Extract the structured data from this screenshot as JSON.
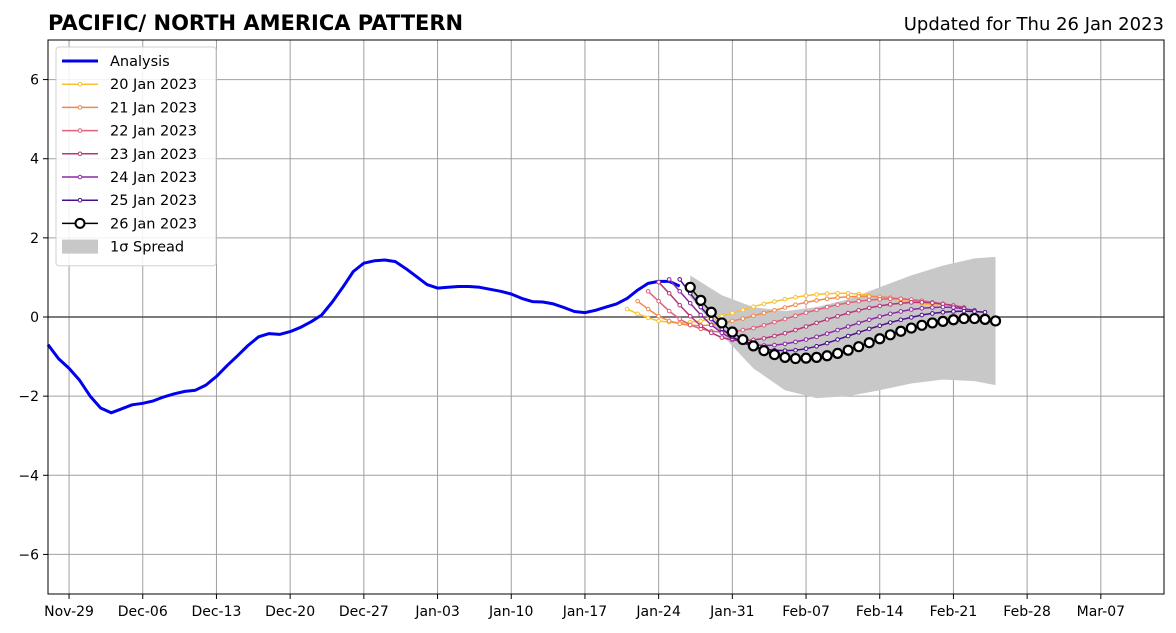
{
  "chart_data": {
    "type": "line",
    "title": "PACIFIC/ NORTH AMERICA PATTERN",
    "updated": "Updated for Thu 26 Jan 2023",
    "xlabel": "",
    "ylabel": "",
    "x_ticks": [
      "Nov-29",
      "Dec-06",
      "Dec-13",
      "Dec-20",
      "Dec-27",
      "Jan-03",
      "Jan-10",
      "Jan-17",
      "Jan-24",
      "Jan-31",
      "Feb-07",
      "Feb-14",
      "Feb-21",
      "Feb-28",
      "Mar-07"
    ],
    "xlim": [
      "2022-11-27",
      "2023-03-13"
    ],
    "y_ticks": [
      6,
      4,
      2,
      0,
      -2,
      -4,
      -6
    ],
    "ylim": [
      -7,
      7
    ],
    "grid": true,
    "legend_position": "top-left",
    "series": [
      {
        "name": "Analysis",
        "color": "#0000ee",
        "style": "line",
        "x": [
          "2022-11-27",
          "2022-11-28",
          "2022-11-29",
          "2022-11-30",
          "2022-12-01",
          "2022-12-02",
          "2022-12-03",
          "2022-12-04",
          "2022-12-05",
          "2022-12-06",
          "2022-12-07",
          "2022-12-08",
          "2022-12-09",
          "2022-12-10",
          "2022-12-11",
          "2022-12-12",
          "2022-12-13",
          "2022-12-14",
          "2022-12-15",
          "2022-12-16",
          "2022-12-17",
          "2022-12-18",
          "2022-12-19",
          "2022-12-20",
          "2022-12-21",
          "2022-12-22",
          "2022-12-23",
          "2022-12-24",
          "2022-12-25",
          "2022-12-26",
          "2022-12-27",
          "2022-12-28",
          "2022-12-29",
          "2022-12-30",
          "2022-12-31",
          "2023-01-01",
          "2023-01-02",
          "2023-01-03",
          "2023-01-04",
          "2023-01-05",
          "2023-01-06",
          "2023-01-07",
          "2023-01-08",
          "2023-01-09",
          "2023-01-10",
          "2023-01-11",
          "2023-01-12",
          "2023-01-13",
          "2023-01-14",
          "2023-01-15",
          "2023-01-16",
          "2023-01-17",
          "2023-01-18",
          "2023-01-19",
          "2023-01-20",
          "2023-01-21",
          "2023-01-22",
          "2023-01-23",
          "2023-01-24",
          "2023-01-25",
          "2023-01-26"
        ],
        "values": [
          -0.7,
          -1.05,
          -1.3,
          -1.6,
          -2.0,
          -2.3,
          -2.42,
          -2.32,
          -2.22,
          -2.18,
          -2.12,
          -2.02,
          -1.94,
          -1.88,
          -1.85,
          -1.72,
          -1.5,
          -1.23,
          -0.98,
          -0.72,
          -0.5,
          -0.42,
          -0.44,
          -0.37,
          -0.26,
          -0.12,
          0.05,
          0.38,
          0.75,
          1.15,
          1.36,
          1.42,
          1.44,
          1.4,
          1.22,
          1.02,
          0.82,
          0.73,
          0.75,
          0.77,
          0.77,
          0.75,
          0.7,
          0.65,
          0.58,
          0.47,
          0.39,
          0.38,
          0.33,
          0.24,
          0.14,
          0.11,
          0.17,
          0.25,
          0.33,
          0.47,
          0.68,
          0.85,
          0.9,
          0.9,
          0.78
        ]
      },
      {
        "name": "20 Jan 2023",
        "color": "#f8c132",
        "style": "dotline",
        "x": [
          "2023-01-21",
          "2023-01-22",
          "2023-01-23",
          "2023-01-24",
          "2023-01-25",
          "2023-01-26",
          "2023-01-27",
          "2023-01-28",
          "2023-01-29",
          "2023-01-30",
          "2023-01-31",
          "2023-02-01",
          "2023-02-02",
          "2023-02-03",
          "2023-02-04",
          "2023-02-05",
          "2023-02-06",
          "2023-02-07",
          "2023-02-08",
          "2023-02-09",
          "2023-02-10",
          "2023-02-11",
          "2023-02-12",
          "2023-02-13",
          "2023-02-14",
          "2023-02-15",
          "2023-02-16",
          "2023-02-17",
          "2023-02-18",
          "2023-02-19"
        ],
        "values": [
          0.2,
          0.08,
          -0.02,
          -0.1,
          -0.13,
          -0.15,
          -0.13,
          -0.1,
          -0.04,
          0.02,
          0.1,
          0.18,
          0.26,
          0.33,
          0.39,
          0.45,
          0.5,
          0.54,
          0.57,
          0.59,
          0.6,
          0.6,
          0.58,
          0.55,
          0.51,
          0.46,
          0.42,
          0.38,
          0.34,
          0.3
        ]
      },
      {
        "name": "21 Jan 2023",
        "color": "#f08a4b",
        "style": "dotline",
        "x": [
          "2023-01-22",
          "2023-01-23",
          "2023-01-24",
          "2023-01-25",
          "2023-01-26",
          "2023-01-27",
          "2023-01-28",
          "2023-01-29",
          "2023-01-30",
          "2023-01-31",
          "2023-02-01",
          "2023-02-02",
          "2023-02-03",
          "2023-02-04",
          "2023-02-05",
          "2023-02-06",
          "2023-02-07",
          "2023-02-08",
          "2023-02-09",
          "2023-02-10",
          "2023-02-11",
          "2023-02-12",
          "2023-02-13",
          "2023-02-14",
          "2023-02-15",
          "2023-02-16",
          "2023-02-17",
          "2023-02-18",
          "2023-02-19",
          "2023-02-20"
        ],
        "values": [
          0.4,
          0.2,
          0.02,
          -0.1,
          -0.17,
          -0.21,
          -0.22,
          -0.2,
          -0.16,
          -0.1,
          -0.04,
          0.03,
          0.1,
          0.17,
          0.24,
          0.31,
          0.37,
          0.42,
          0.46,
          0.49,
          0.51,
          0.52,
          0.52,
          0.51,
          0.49,
          0.46,
          0.43,
          0.39,
          0.35,
          0.31
        ]
      },
      {
        "name": "22 Jan 2023",
        "color": "#e0607e",
        "style": "dotline",
        "x": [
          "2023-01-23",
          "2023-01-24",
          "2023-01-25",
          "2023-01-26",
          "2023-01-27",
          "2023-01-28",
          "2023-01-29",
          "2023-01-30",
          "2023-01-31",
          "2023-02-01",
          "2023-02-02",
          "2023-02-03",
          "2023-02-04",
          "2023-02-05",
          "2023-02-06",
          "2023-02-07",
          "2023-02-08",
          "2023-02-09",
          "2023-02-10",
          "2023-02-11",
          "2023-02-12",
          "2023-02-13",
          "2023-02-14",
          "2023-02-15",
          "2023-02-16",
          "2023-02-17",
          "2023-02-18",
          "2023-02-19",
          "2023-02-20",
          "2023-02-21"
        ],
        "values": [
          0.65,
          0.4,
          0.15,
          -0.05,
          -0.2,
          -0.3,
          -0.36,
          -0.38,
          -0.37,
          -0.33,
          -0.28,
          -0.21,
          -0.13,
          -0.05,
          0.03,
          0.11,
          0.18,
          0.25,
          0.31,
          0.36,
          0.4,
          0.43,
          0.45,
          0.46,
          0.46,
          0.44,
          0.41,
          0.37,
          0.33,
          0.28
        ]
      },
      {
        "name": "23 Jan 2023",
        "color": "#b63679",
        "style": "dotline",
        "x": [
          "2023-01-24",
          "2023-01-25",
          "2023-01-26",
          "2023-01-27",
          "2023-01-28",
          "2023-01-29",
          "2023-01-30",
          "2023-01-31",
          "2023-02-01",
          "2023-02-02",
          "2023-02-03",
          "2023-02-04",
          "2023-02-05",
          "2023-02-06",
          "2023-02-07",
          "2023-02-08",
          "2023-02-09",
          "2023-02-10",
          "2023-02-11",
          "2023-02-12",
          "2023-02-13",
          "2023-02-14",
          "2023-02-15",
          "2023-02-16",
          "2023-02-17",
          "2023-02-18",
          "2023-02-19",
          "2023-02-20",
          "2023-02-21",
          "2023-02-22"
        ],
        "values": [
          0.88,
          0.6,
          0.3,
          0.02,
          -0.22,
          -0.4,
          -0.52,
          -0.58,
          -0.6,
          -0.58,
          -0.54,
          -0.48,
          -0.41,
          -0.33,
          -0.24,
          -0.15,
          -0.06,
          0.02,
          0.1,
          0.17,
          0.23,
          0.28,
          0.32,
          0.35,
          0.37,
          0.37,
          0.36,
          0.33,
          0.29,
          0.24
        ]
      },
      {
        "name": "24 Jan 2023",
        "color": "#8c29a4",
        "style": "dotline",
        "x": [
          "2023-01-25",
          "2023-01-26",
          "2023-01-27",
          "2023-01-28",
          "2023-01-29",
          "2023-01-30",
          "2023-01-31",
          "2023-02-01",
          "2023-02-02",
          "2023-02-03",
          "2023-02-04",
          "2023-02-05",
          "2023-02-06",
          "2023-02-07",
          "2023-02-08",
          "2023-02-09",
          "2023-02-10",
          "2023-02-11",
          "2023-02-12",
          "2023-02-13",
          "2023-02-14",
          "2023-02-15",
          "2023-02-16",
          "2023-02-17",
          "2023-02-18",
          "2023-02-19",
          "2023-02-20",
          "2023-02-21",
          "2023-02-22",
          "2023-02-23"
        ],
        "values": [
          0.95,
          0.65,
          0.35,
          0.05,
          -0.2,
          -0.4,
          -0.55,
          -0.65,
          -0.7,
          -0.72,
          -0.71,
          -0.68,
          -0.63,
          -0.57,
          -0.5,
          -0.42,
          -0.33,
          -0.24,
          -0.15,
          -0.07,
          0.01,
          0.08,
          0.14,
          0.19,
          0.22,
          0.24,
          0.25,
          0.24,
          0.21,
          0.17
        ]
      },
      {
        "name": "25 Jan 2023",
        "color": "#4c0f8a",
        "style": "dotline",
        "x": [
          "2023-01-26",
          "2023-01-27",
          "2023-01-28",
          "2023-01-29",
          "2023-01-30",
          "2023-01-31",
          "2023-02-01",
          "2023-02-02",
          "2023-02-03",
          "2023-02-04",
          "2023-02-05",
          "2023-02-06",
          "2023-02-07",
          "2023-02-08",
          "2023-02-09",
          "2023-02-10",
          "2023-02-11",
          "2023-02-12",
          "2023-02-13",
          "2023-02-14",
          "2023-02-15",
          "2023-02-16",
          "2023-02-17",
          "2023-02-18",
          "2023-02-19",
          "2023-02-20",
          "2023-02-21",
          "2023-02-22",
          "2023-02-23",
          "2023-02-24"
        ],
        "values": [
          0.95,
          0.6,
          0.25,
          -0.05,
          -0.3,
          -0.5,
          -0.65,
          -0.75,
          -0.81,
          -0.84,
          -0.85,
          -0.84,
          -0.8,
          -0.74,
          -0.66,
          -0.57,
          -0.48,
          -0.39,
          -0.3,
          -0.22,
          -0.14,
          -0.07,
          -0.01,
          0.05,
          0.09,
          0.12,
          0.14,
          0.15,
          0.14,
          0.12
        ]
      },
      {
        "name": "26 Jan 2023",
        "color": "#000000",
        "style": "circles",
        "x": [
          "2023-01-27",
          "2023-01-28",
          "2023-01-29",
          "2023-01-30",
          "2023-01-31",
          "2023-02-01",
          "2023-02-02",
          "2023-02-03",
          "2023-02-04",
          "2023-02-05",
          "2023-02-06",
          "2023-02-07",
          "2023-02-08",
          "2023-02-09",
          "2023-02-10",
          "2023-02-11",
          "2023-02-12",
          "2023-02-13",
          "2023-02-14",
          "2023-02-15",
          "2023-02-16",
          "2023-02-17",
          "2023-02-18",
          "2023-02-19",
          "2023-02-20",
          "2023-02-21",
          "2023-02-22",
          "2023-02-23",
          "2023-02-24",
          "2023-02-25"
        ],
        "values": [
          0.75,
          0.42,
          0.12,
          -0.15,
          -0.38,
          -0.57,
          -0.73,
          -0.85,
          -0.95,
          -1.02,
          -1.05,
          -1.04,
          -1.02,
          -0.98,
          -0.92,
          -0.84,
          -0.75,
          -0.65,
          -0.55,
          -0.45,
          -0.36,
          -0.28,
          -0.21,
          -0.15,
          -0.11,
          -0.07,
          -0.04,
          -0.04,
          -0.06,
          -0.1
        ]
      }
    ],
    "spread": {
      "name": "1σ Spread",
      "color": "#c8c8c8",
      "x": [
        "2023-01-27",
        "2023-01-30",
        "2023-02-02",
        "2023-02-05",
        "2023-02-08",
        "2023-02-11",
        "2023-02-14",
        "2023-02-17",
        "2023-02-20",
        "2023-02-23",
        "2023-02-25"
      ],
      "upper": [
        1.05,
        0.55,
        0.25,
        0.15,
        0.25,
        0.45,
        0.75,
        1.05,
        1.3,
        1.48,
        1.52
      ],
      "lower": [
        0.5,
        -0.45,
        -1.3,
        -1.85,
        -2.05,
        -2.0,
        -1.85,
        -1.68,
        -1.58,
        -1.62,
        -1.72
      ]
    }
  }
}
